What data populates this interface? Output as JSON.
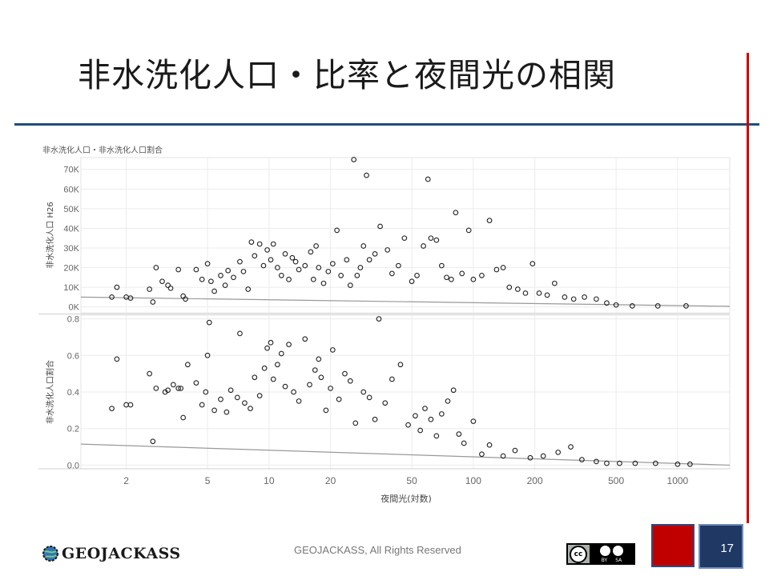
{
  "slide": {
    "title": "非水洗化人口・比率と夜間光の相関",
    "page_number": "17",
    "footer_text": "GEOJACKASS, All Rights Reserved",
    "logo_text": "GEOJACKASS",
    "license": {
      "cc": "cc",
      "by": "BY",
      "sa": "SA"
    },
    "colors": {
      "title_rule": "#1f4e79",
      "side_rule": "#cc0000",
      "red_box": "#c00000",
      "blue_box": "#1f3864"
    }
  },
  "chart_data": {
    "type": "scatter",
    "title": "非水洗化人口・非水洗化人口割合",
    "xlabel": "夜間光(対数)",
    "x_scale": "log",
    "x_ticks": [
      2,
      5,
      10,
      20,
      50,
      100,
      200,
      500,
      1000
    ],
    "xlim": [
      1.2,
      1800
    ],
    "grid": true,
    "panels": [
      {
        "name": "top",
        "ylabel": "非水洗化人口 H26",
        "ylim": [
          -3000,
          76000
        ],
        "y_ticks": [
          0,
          10000,
          20000,
          30000,
          40000,
          50000,
          60000,
          70000
        ],
        "y_tick_labels": [
          "0K",
          "10K",
          "20K",
          "30K",
          "40K",
          "50K",
          "60K",
          "70K"
        ],
        "trend": {
          "x": [
            1.2,
            1800
          ],
          "y": [
            5000,
            300
          ]
        },
        "points": [
          [
            1.7,
            5000
          ],
          [
            1.8,
            10000
          ],
          [
            2.0,
            5000
          ],
          [
            2.1,
            4500
          ],
          [
            2.6,
            9000
          ],
          [
            2.7,
            2500
          ],
          [
            2.8,
            20000
          ],
          [
            3.0,
            13000
          ],
          [
            3.2,
            11000
          ],
          [
            3.3,
            9500
          ],
          [
            3.6,
            19000
          ],
          [
            3.8,
            5500
          ],
          [
            3.9,
            4000
          ],
          [
            4.4,
            19000
          ],
          [
            4.7,
            14000
          ],
          [
            5.0,
            22000
          ],
          [
            5.2,
            13000
          ],
          [
            5.4,
            8000
          ],
          [
            5.8,
            16000
          ],
          [
            6.1,
            11000
          ],
          [
            6.3,
            18500
          ],
          [
            6.7,
            15000
          ],
          [
            7.2,
            23000
          ],
          [
            7.5,
            18000
          ],
          [
            7.9,
            9000
          ],
          [
            8.2,
            33000
          ],
          [
            8.5,
            26000
          ],
          [
            9.0,
            32000
          ],
          [
            9.4,
            21000
          ],
          [
            9.8,
            29000
          ],
          [
            10.2,
            24000
          ],
          [
            10.5,
            32000
          ],
          [
            11.0,
            20000
          ],
          [
            11.5,
            16000
          ],
          [
            12.0,
            27000
          ],
          [
            12.5,
            14000
          ],
          [
            13.0,
            25000
          ],
          [
            13.5,
            23000
          ],
          [
            14.0,
            19000
          ],
          [
            15.0,
            21000
          ],
          [
            16.0,
            28000
          ],
          [
            16.5,
            14000
          ],
          [
            17.0,
            31000
          ],
          [
            17.5,
            20000
          ],
          [
            18.5,
            12000
          ],
          [
            19.5,
            18000
          ],
          [
            20.5,
            22000
          ],
          [
            21.5,
            39000
          ],
          [
            22.5,
            16000
          ],
          [
            24.0,
            24000
          ],
          [
            25.0,
            11000
          ],
          [
            26.0,
            75000
          ],
          [
            27.0,
            16000
          ],
          [
            28.0,
            20000
          ],
          [
            29.0,
            31000
          ],
          [
            30.0,
            67000
          ],
          [
            31.0,
            24000
          ],
          [
            33.0,
            27000
          ],
          [
            35.0,
            41000
          ],
          [
            38.0,
            29000
          ],
          [
            40.0,
            17000
          ],
          [
            43.0,
            21000
          ],
          [
            46.0,
            35000
          ],
          [
            50.0,
            13000
          ],
          [
            53.0,
            16000
          ],
          [
            57.0,
            31000
          ],
          [
            60.0,
            65000
          ],
          [
            62.0,
            35000
          ],
          [
            66.0,
            34000
          ],
          [
            70.0,
            21000
          ],
          [
            74.0,
            15000
          ],
          [
            78.0,
            14000
          ],
          [
            82.0,
            48000
          ],
          [
            88.0,
            17000
          ],
          [
            95.0,
            39000
          ],
          [
            100.0,
            14000
          ],
          [
            110.0,
            16000
          ],
          [
            120.0,
            44000
          ],
          [
            130.0,
            19000
          ],
          [
            140.0,
            20000
          ],
          [
            150.0,
            10000
          ],
          [
            165.0,
            9000
          ],
          [
            180.0,
            7000
          ],
          [
            195.0,
            22000
          ],
          [
            210.0,
            7000
          ],
          [
            230.0,
            6000
          ],
          [
            250.0,
            12000
          ],
          [
            280.0,
            5000
          ],
          [
            310.0,
            4000
          ],
          [
            350.0,
            5000
          ],
          [
            400.0,
            4000
          ],
          [
            450.0,
            2000
          ],
          [
            500.0,
            1000
          ],
          [
            600.0,
            500
          ],
          [
            800.0,
            500
          ],
          [
            1100.0,
            500
          ]
        ]
      },
      {
        "name": "bottom",
        "ylabel": "非水洗化人口割合",
        "ylim": [
          -0.02,
          0.82
        ],
        "y_ticks": [
          0.0,
          0.2,
          0.4,
          0.6,
          0.8
        ],
        "y_tick_labels": [
          "0.0",
          "0.2",
          "0.4",
          "0.6",
          "0.8"
        ],
        "trend": {
          "x": [
            1.2,
            1800
          ],
          "y": [
            0.115,
            0.0
          ]
        },
        "points": [
          [
            1.7,
            0.31
          ],
          [
            1.8,
            0.58
          ],
          [
            2.0,
            0.33
          ],
          [
            2.1,
            0.33
          ],
          [
            2.6,
            0.5
          ],
          [
            2.7,
            0.13
          ],
          [
            2.8,
            0.42
          ],
          [
            3.1,
            0.4
          ],
          [
            3.2,
            0.41
          ],
          [
            3.4,
            0.44
          ],
          [
            3.6,
            0.42
          ],
          [
            3.7,
            0.42
          ],
          [
            3.8,
            0.26
          ],
          [
            4.0,
            0.55
          ],
          [
            4.4,
            0.45
          ],
          [
            4.7,
            0.33
          ],
          [
            4.9,
            0.4
          ],
          [
            5.0,
            0.6
          ],
          [
            5.1,
            0.78
          ],
          [
            5.4,
            0.3
          ],
          [
            5.8,
            0.36
          ],
          [
            6.2,
            0.29
          ],
          [
            6.5,
            0.41
          ],
          [
            7.0,
            0.37
          ],
          [
            7.2,
            0.72
          ],
          [
            7.6,
            0.34
          ],
          [
            8.1,
            0.31
          ],
          [
            8.5,
            0.48
          ],
          [
            9.0,
            0.38
          ],
          [
            9.5,
            0.53
          ],
          [
            9.8,
            0.64
          ],
          [
            10.2,
            0.67
          ],
          [
            10.5,
            0.47
          ],
          [
            11.0,
            0.55
          ],
          [
            11.5,
            0.61
          ],
          [
            12.0,
            0.43
          ],
          [
            12.5,
            0.66
          ],
          [
            13.2,
            0.4
          ],
          [
            14.0,
            0.35
          ],
          [
            15.0,
            0.69
          ],
          [
            15.8,
            0.44
          ],
          [
            16.8,
            0.52
          ],
          [
            17.5,
            0.58
          ],
          [
            18.0,
            0.48
          ],
          [
            19.0,
            0.3
          ],
          [
            20.0,
            0.42
          ],
          [
            20.5,
            0.63
          ],
          [
            22.0,
            0.36
          ],
          [
            23.5,
            0.5
          ],
          [
            25.0,
            0.46
          ],
          [
            26.5,
            0.23
          ],
          [
            29.0,
            0.4
          ],
          [
            31.0,
            0.37
          ],
          [
            33.0,
            0.25
          ],
          [
            34.5,
            0.8
          ],
          [
            37.0,
            0.34
          ],
          [
            40.0,
            0.47
          ],
          [
            44.0,
            0.55
          ],
          [
            48.0,
            0.22
          ],
          [
            52.0,
            0.27
          ],
          [
            55.0,
            0.19
          ],
          [
            58.0,
            0.31
          ],
          [
            62.0,
            0.25
          ],
          [
            66.0,
            0.16
          ],
          [
            70.0,
            0.28
          ],
          [
            75.0,
            0.35
          ],
          [
            80.0,
            0.41
          ],
          [
            85.0,
            0.17
          ],
          [
            90.0,
            0.12
          ],
          [
            100.0,
            0.24
          ],
          [
            110.0,
            0.06
          ],
          [
            120.0,
            0.11
          ],
          [
            140.0,
            0.05
          ],
          [
            160.0,
            0.08
          ],
          [
            190.0,
            0.04
          ],
          [
            220.0,
            0.05
          ],
          [
            260.0,
            0.07
          ],
          [
            300.0,
            0.1
          ],
          [
            340.0,
            0.03
          ],
          [
            400.0,
            0.02
          ],
          [
            450.0,
            0.01
          ],
          [
            520.0,
            0.01
          ],
          [
            620.0,
            0.01
          ],
          [
            780.0,
            0.01
          ],
          [
            1000.0,
            0.005
          ],
          [
            1150.0,
            0.005
          ]
        ]
      }
    ]
  }
}
